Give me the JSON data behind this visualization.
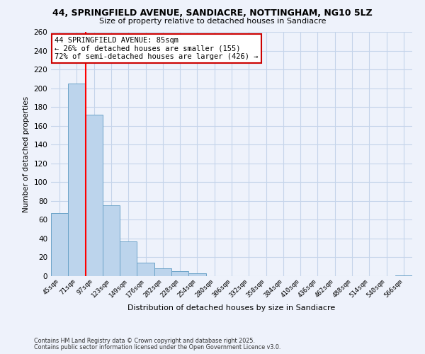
{
  "title1": "44, SPRINGFIELD AVENUE, SANDIACRE, NOTTINGHAM, NG10 5LZ",
  "title2": "Size of property relative to detached houses in Sandiacre",
  "xlabel": "Distribution of detached houses by size in Sandiacre",
  "ylabel": "Number of detached properties",
  "bin_labels": [
    "45sqm",
    "71sqm",
    "97sqm",
    "123sqm",
    "149sqm",
    "176sqm",
    "202sqm",
    "228sqm",
    "254sqm",
    "280sqm",
    "306sqm",
    "332sqm",
    "358sqm",
    "384sqm",
    "410sqm",
    "436sqm",
    "462sqm",
    "488sqm",
    "514sqm",
    "540sqm",
    "566sqm"
  ],
  "bar_heights": [
    67,
    205,
    172,
    75,
    37,
    14,
    8,
    5,
    3,
    0,
    0,
    0,
    0,
    0,
    0,
    0,
    0,
    0,
    0,
    0,
    1
  ],
  "bar_color": "#bcd4ec",
  "bar_edge_color": "#6ba3c8",
  "ylim": [
    0,
    260
  ],
  "yticks": [
    0,
    20,
    40,
    60,
    80,
    100,
    120,
    140,
    160,
    180,
    200,
    220,
    240,
    260
  ],
  "property_label": "44 SPRINGFIELD AVENUE: 85sqm",
  "annotation_line1": "← 26% of detached houses are smaller (155)",
  "annotation_line2": "72% of semi-detached houses are larger (426) →",
  "red_line_bin_index": 1.5,
  "footer1": "Contains HM Land Registry data © Crown copyright and database right 2025.",
  "footer2": "Contains public sector information licensed under the Open Government Licence v3.0.",
  "bg_color": "#eef2fb",
  "grid_color": "#c5d4ea",
  "annotation_box_color": "white",
  "annotation_box_edge": "#cc0000"
}
